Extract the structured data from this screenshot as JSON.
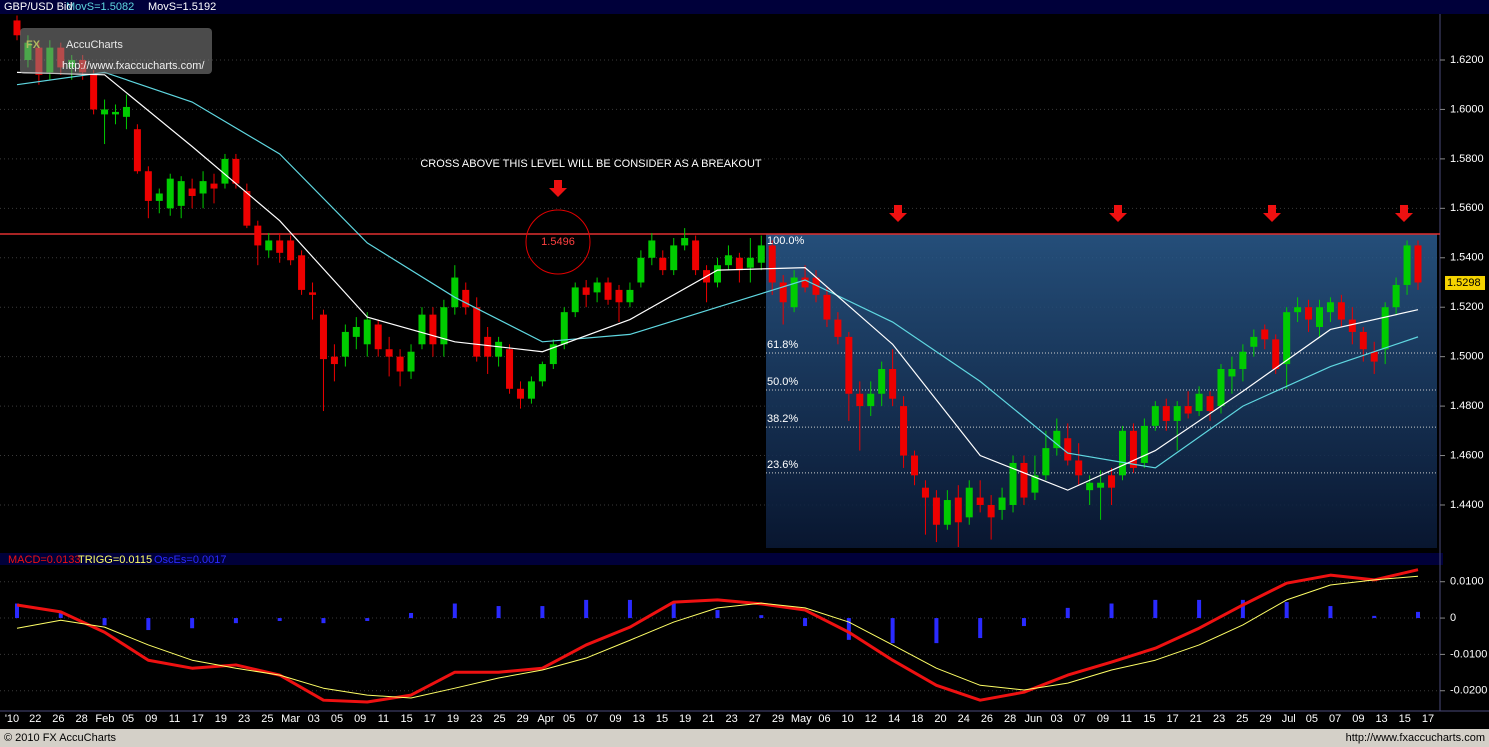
{
  "header": {
    "symbol": "GBP/USD Bid"
  },
  "logo": {
    "fx": "FX",
    "name": "AccuCharts",
    "url": "http://www.fxaccucharts.com/"
  },
  "chart_data": [
    {
      "type": "candlestick",
      "up_color": "#00cc00",
      "down_color": "#ee0000",
      "ylim": [
        1.4226,
        1.6382
      ],
      "yticks": [
        {
          "value": 1.44,
          "label": "1.4400"
        },
        {
          "value": 1.46,
          "label": "1.4600"
        },
        {
          "value": 1.48,
          "label": "1.4800"
        },
        {
          "value": 1.5,
          "label": "1.5000"
        },
        {
          "value": 1.52,
          "label": "1.5200"
        },
        {
          "value": 1.54,
          "label": "1.5400"
        },
        {
          "value": 1.56,
          "label": "1.5600"
        },
        {
          "value": 1.58,
          "label": "1.5800"
        },
        {
          "value": 1.6,
          "label": "1.6000"
        },
        {
          "value": 1.62,
          "label": "1.6200"
        }
      ],
      "grid": true,
      "ohlc": [
        [
          1.636,
          1.638,
          1.628,
          1.63
        ],
        [
          1.62,
          1.63,
          1.617,
          1.627
        ],
        [
          1.625,
          1.627,
          1.61,
          1.614
        ],
        [
          1.615,
          1.628,
          1.612,
          1.625
        ],
        [
          1.625,
          1.627,
          1.614,
          1.617
        ],
        [
          1.617,
          1.622,
          1.612,
          1.62
        ],
        [
          1.62,
          1.622,
          1.612,
          1.615
        ],
        [
          1.614,
          1.616,
          1.598,
          1.6
        ],
        [
          1.598,
          1.604,
          1.586,
          1.6
        ],
        [
          1.598,
          1.602,
          1.594,
          1.599
        ],
        [
          1.597,
          1.606,
          1.592,
          1.601
        ],
        [
          1.592,
          1.594,
          1.574,
          1.575
        ],
        [
          1.575,
          1.577,
          1.556,
          1.563
        ],
        [
          1.563,
          1.568,
          1.558,
          1.566
        ],
        [
          1.56,
          1.574,
          1.557,
          1.572
        ],
        [
          1.561,
          1.573,
          1.556,
          1.571
        ],
        [
          1.568,
          1.572,
          1.56,
          1.565
        ],
        [
          1.566,
          1.575,
          1.56,
          1.571
        ],
        [
          1.57,
          1.574,
          1.562,
          1.568
        ],
        [
          1.57,
          1.582,
          1.568,
          1.58
        ],
        [
          1.58,
          1.582,
          1.568,
          1.57
        ],
        [
          1.567,
          1.57,
          1.552,
          1.553
        ],
        [
          1.553,
          1.555,
          1.537,
          1.545
        ],
        [
          1.543,
          1.55,
          1.54,
          1.547
        ],
        [
          1.547,
          1.55,
          1.538,
          1.542
        ],
        [
          1.547,
          1.549,
          1.537,
          1.539
        ],
        [
          1.541,
          1.543,
          1.525,
          1.527
        ],
        [
          1.526,
          1.53,
          1.515,
          1.525
        ],
        [
          1.517,
          1.519,
          1.478,
          1.499
        ],
        [
          1.5,
          1.505,
          1.49,
          1.497
        ],
        [
          1.5,
          1.513,
          1.496,
          1.51
        ],
        [
          1.508,
          1.516,
          1.503,
          1.512
        ],
        [
          1.505,
          1.518,
          1.5,
          1.515
        ],
        [
          1.513,
          1.515,
          1.5,
          1.503
        ],
        [
          1.503,
          1.508,
          1.492,
          1.5
        ],
        [
          1.5,
          1.503,
          1.488,
          1.494
        ],
        [
          1.494,
          1.505,
          1.491,
          1.502
        ],
        [
          1.505,
          1.52,
          1.503,
          1.517
        ],
        [
          1.517,
          1.52,
          1.5,
          1.505
        ],
        [
          1.505,
          1.523,
          1.5,
          1.52
        ],
        [
          1.52,
          1.537,
          1.517,
          1.532
        ],
        [
          1.527,
          1.53,
          1.517,
          1.52
        ],
        [
          1.52,
          1.524,
          1.498,
          1.5
        ],
        [
          1.508,
          1.512,
          1.493,
          1.5
        ],
        [
          1.5,
          1.508,
          1.496,
          1.506
        ],
        [
          1.503,
          1.505,
          1.485,
          1.487
        ],
        [
          1.487,
          1.49,
          1.479,
          1.483
        ],
        [
          1.483,
          1.492,
          1.481,
          1.49
        ],
        [
          1.49,
          1.498,
          1.488,
          1.497
        ],
        [
          1.497,
          1.507,
          1.495,
          1.505
        ],
        [
          1.505,
          1.52,
          1.503,
          1.518
        ],
        [
          1.518,
          1.53,
          1.516,
          1.528
        ],
        [
          1.528,
          1.531,
          1.52,
          1.525
        ],
        [
          1.526,
          1.532,
          1.522,
          1.53
        ],
        [
          1.53,
          1.532,
          1.521,
          1.523
        ],
        [
          1.527,
          1.529,
          1.514,
          1.522
        ],
        [
          1.522,
          1.53,
          1.52,
          1.527
        ],
        [
          1.53,
          1.543,
          1.528,
          1.54
        ],
        [
          1.54,
          1.55,
          1.537,
          1.547
        ],
        [
          1.54,
          1.543,
          1.533,
          1.535
        ],
        [
          1.535,
          1.548,
          1.533,
          1.545
        ],
        [
          1.545,
          1.552,
          1.543,
          1.548
        ],
        [
          1.547,
          1.549,
          1.533,
          1.535
        ],
        [
          1.535,
          1.537,
          1.522,
          1.53
        ],
        [
          1.53,
          1.54,
          1.528,
          1.537
        ],
        [
          1.537,
          1.545,
          1.535,
          1.541
        ],
        [
          1.54,
          1.542,
          1.53,
          1.535
        ],
        [
          1.536,
          1.548,
          1.53,
          1.54
        ],
        [
          1.538,
          1.549,
          1.535,
          1.545
        ],
        [
          1.545,
          1.547,
          1.525,
          1.53
        ],
        [
          1.53,
          1.533,
          1.513,
          1.522
        ],
        [
          1.52,
          1.535,
          1.518,
          1.532
        ],
        [
          1.532,
          1.537,
          1.526,
          1.528
        ],
        [
          1.532,
          1.535,
          1.522,
          1.525
        ],
        [
          1.525,
          1.528,
          1.512,
          1.515
        ],
        [
          1.515,
          1.518,
          1.505,
          1.508
        ],
        [
          1.508,
          1.51,
          1.474,
          1.485
        ],
        [
          1.485,
          1.49,
          1.462,
          1.48
        ],
        [
          1.48,
          1.49,
          1.476,
          1.485
        ],
        [
          1.485,
          1.498,
          1.48,
          1.495
        ],
        [
          1.495,
          1.503,
          1.48,
          1.483
        ],
        [
          1.48,
          1.484,
          1.455,
          1.46
        ],
        [
          1.46,
          1.462,
          1.448,
          1.452
        ],
        [
          1.447,
          1.45,
          1.428,
          1.443
        ],
        [
          1.443,
          1.446,
          1.425,
          1.432
        ],
        [
          1.432,
          1.446,
          1.43,
          1.442
        ],
        [
          1.443,
          1.448,
          1.423,
          1.433
        ],
        [
          1.435,
          1.45,
          1.432,
          1.447
        ],
        [
          1.443,
          1.45,
          1.437,
          1.44
        ],
        [
          1.44,
          1.444,
          1.426,
          1.435
        ],
        [
          1.438,
          1.447,
          1.434,
          1.443
        ],
        [
          1.44,
          1.46,
          1.437,
          1.457
        ],
        [
          1.457,
          1.46,
          1.44,
          1.443
        ],
        [
          1.445,
          1.46,
          1.442,
          1.452
        ],
        [
          1.452,
          1.47,
          1.45,
          1.463
        ],
        [
          1.463,
          1.475,
          1.46,
          1.47
        ],
        [
          1.467,
          1.473,
          1.456,
          1.458
        ],
        [
          1.458,
          1.465,
          1.448,
          1.452
        ],
        [
          1.446,
          1.452,
          1.44,
          1.449
        ],
        [
          1.447,
          1.454,
          1.434,
          1.449
        ],
        [
          1.452,
          1.455,
          1.44,
          1.447
        ],
        [
          1.452,
          1.472,
          1.45,
          1.47
        ],
        [
          1.47,
          1.473,
          1.453,
          1.455
        ],
        [
          1.457,
          1.475,
          1.455,
          1.472
        ],
        [
          1.472,
          1.482,
          1.47,
          1.48
        ],
        [
          1.48,
          1.483,
          1.47,
          1.474
        ],
        [
          1.474,
          1.482,
          1.462,
          1.48
        ],
        [
          1.48,
          1.486,
          1.475,
          1.477
        ],
        [
          1.478,
          1.488,
          1.476,
          1.485
        ],
        [
          1.484,
          1.486,
          1.474,
          1.478
        ],
        [
          1.48,
          1.497,
          1.477,
          1.495
        ],
        [
          1.492,
          1.5,
          1.485,
          1.495
        ],
        [
          1.495,
          1.505,
          1.49,
          1.502
        ],
        [
          1.504,
          1.511,
          1.5,
          1.508
        ],
        [
          1.511,
          1.513,
          1.503,
          1.507
        ],
        [
          1.507,
          1.509,
          1.493,
          1.495
        ],
        [
          1.497,
          1.52,
          1.487,
          1.518
        ],
        [
          1.518,
          1.524,
          1.514,
          1.52
        ],
        [
          1.52,
          1.523,
          1.51,
          1.515
        ],
        [
          1.512,
          1.523,
          1.508,
          1.52
        ],
        [
          1.518,
          1.524,
          1.514,
          1.522
        ],
        [
          1.522,
          1.525,
          1.512,
          1.515
        ],
        [
          1.515,
          1.52,
          1.505,
          1.51
        ],
        [
          1.51,
          1.512,
          1.498,
          1.503
        ],
        [
          1.502,
          1.506,
          1.493,
          1.498
        ],
        [
          1.503,
          1.522,
          1.497,
          1.52
        ],
        [
          1.52,
          1.532,
          1.517,
          1.529
        ],
        [
          1.529,
          1.547,
          1.525,
          1.545
        ],
        [
          1.545,
          1.547,
          1.527,
          1.53
        ]
      ],
      "series": [
        {
          "name": "MovS=1.5082",
          "color": "#5fd7e0",
          "x": [
            0,
            8,
            16,
            24,
            32,
            40,
            48,
            56,
            64,
            72,
            80,
            88,
            96,
            104,
            112,
            120,
            128
          ],
          "values": [
            1.61,
            1.615,
            1.603,
            1.582,
            1.546,
            1.524,
            1.506,
            1.509,
            1.52,
            1.531,
            1.514,
            1.49,
            1.461,
            1.455,
            1.48,
            1.496,
            1.508
          ]
        },
        {
          "name": "MovS=1.5192",
          "color": "#ffffff",
          "x": [
            0,
            8,
            16,
            24,
            32,
            40,
            48,
            56,
            64,
            72,
            80,
            88,
            96,
            104,
            112,
            120,
            128
          ],
          "values": [
            1.615,
            1.614,
            1.585,
            1.555,
            1.516,
            1.506,
            1.502,
            1.515,
            1.535,
            1.536,
            1.505,
            1.46,
            1.446,
            1.462,
            1.486,
            1.511,
            1.519
          ]
        }
      ],
      "annotation": "CROSS ABOVE THIS LEVEL WILL BE CONSIDER AS A BREAKOUT",
      "resistance": {
        "value": 1.5496,
        "label": "1.5496"
      },
      "fib_levels": [
        {
          "value": 1.5496,
          "label": "100.0%"
        },
        {
          "value": 1.5015,
          "label": "61.8%"
        },
        {
          "value": 1.4865,
          "label": "50.0%"
        },
        {
          "value": 1.4715,
          "label": "38.2%"
        },
        {
          "value": 1.453,
          "label": "23.6%"
        }
      ],
      "last_price": {
        "value": 1.5298,
        "label": "1.5298"
      }
    },
    {
      "type": "macd",
      "ylim": [
        -0.0253,
        0.0146
      ],
      "yticks": [
        {
          "value": -0.02,
          "label": "-0.0200"
        },
        {
          "value": -0.01,
          "label": "-0.0100"
        },
        0,
        {
          "value": 0.01,
          "label": "0.0100"
        }
      ],
      "x": [
        0,
        4,
        8,
        12,
        16,
        20,
        24,
        28,
        32,
        36,
        40,
        44,
        48,
        52,
        56,
        60,
        64,
        68,
        72,
        76,
        80,
        84,
        88,
        92,
        96,
        100,
        104,
        108,
        112,
        116,
        120,
        124,
        128
      ],
      "series": [
        {
          "name": "OscEs=0.0017",
          "color": "#2a2aff",
          "kind": "bar",
          "values": [
            0.004,
            0.0014,
            -0.002,
            -0.0033,
            -0.0028,
            -0.0014,
            -0.0008,
            -0.0014,
            -0.0008,
            0.0014,
            0.004,
            0.0033,
            0.0033,
            0.005,
            0.005,
            0.004,
            0.0022,
            0.0008,
            -0.0022,
            -0.006,
            -0.0069,
            -0.0069,
            -0.0055,
            -0.0022,
            0.0028,
            0.004,
            0.005,
            0.005,
            0.005,
            0.0044,
            0.0033,
            0.0006,
            0.0017
          ]
        },
        {
          "name": "MACD=0.0133",
          "color": "#ee1111",
          "kind": "line",
          "width": 3,
          "values": [
            0.0036,
            0.0017,
            -0.0039,
            -0.0116,
            -0.0138,
            -0.0129,
            -0.0157,
            -0.0226,
            -0.0231,
            -0.0212,
            -0.0149,
            -0.0149,
            -0.0138,
            -0.0074,
            -0.0025,
            0.0044,
            0.005,
            0.0039,
            0.0022,
            -0.0039,
            -0.0116,
            -0.0185,
            -0.0226,
            -0.0204,
            -0.0157,
            -0.0121,
            -0.0083,
            -0.0028,
            0.0036,
            0.0096,
            0.0118,
            0.0105,
            0.0133
          ]
        },
        {
          "name": "TRIGG=0.0115",
          "color": "#ffff66",
          "kind": "line",
          "width": 1,
          "values": [
            -0.0028,
            -0.0006,
            -0.0025,
            -0.0074,
            -0.0116,
            -0.0138,
            -0.0157,
            -0.0193,
            -0.0212,
            -0.022,
            -0.0193,
            -0.0165,
            -0.0143,
            -0.011,
            -0.0061,
            -0.0011,
            0.0028,
            0.0041,
            0.0028,
            -0.0011,
            -0.0074,
            -0.0138,
            -0.0185,
            -0.0198,
            -0.0179,
            -0.0143,
            -0.0116,
            -0.0074,
            -0.0019,
            0.005,
            0.0091,
            0.0105,
            0.0115
          ]
        }
      ]
    }
  ],
  "x_labels": [
    "'10",
    "22",
    "26",
    "28",
    "Feb",
    "05",
    "09",
    "11",
    "17",
    "19",
    "23",
    "25",
    "Mar",
    "03",
    "05",
    "09",
    "11",
    "15",
    "17",
    "19",
    "23",
    "25",
    "29",
    "Apr",
    "05",
    "07",
    "09",
    "13",
    "15",
    "19",
    "21",
    "23",
    "27",
    "29",
    "May",
    "06",
    "10",
    "12",
    "14",
    "18",
    "20",
    "24",
    "26",
    "28",
    "Jun",
    "03",
    "07",
    "09",
    "11",
    "15",
    "17",
    "21",
    "23",
    "25",
    "29",
    "Jul",
    "05",
    "07",
    "09",
    "13",
    "15",
    "17"
  ],
  "footer": {
    "copyright": "© 2010 FX AccuCharts",
    "url": "http://www.fxaccucharts.com"
  }
}
